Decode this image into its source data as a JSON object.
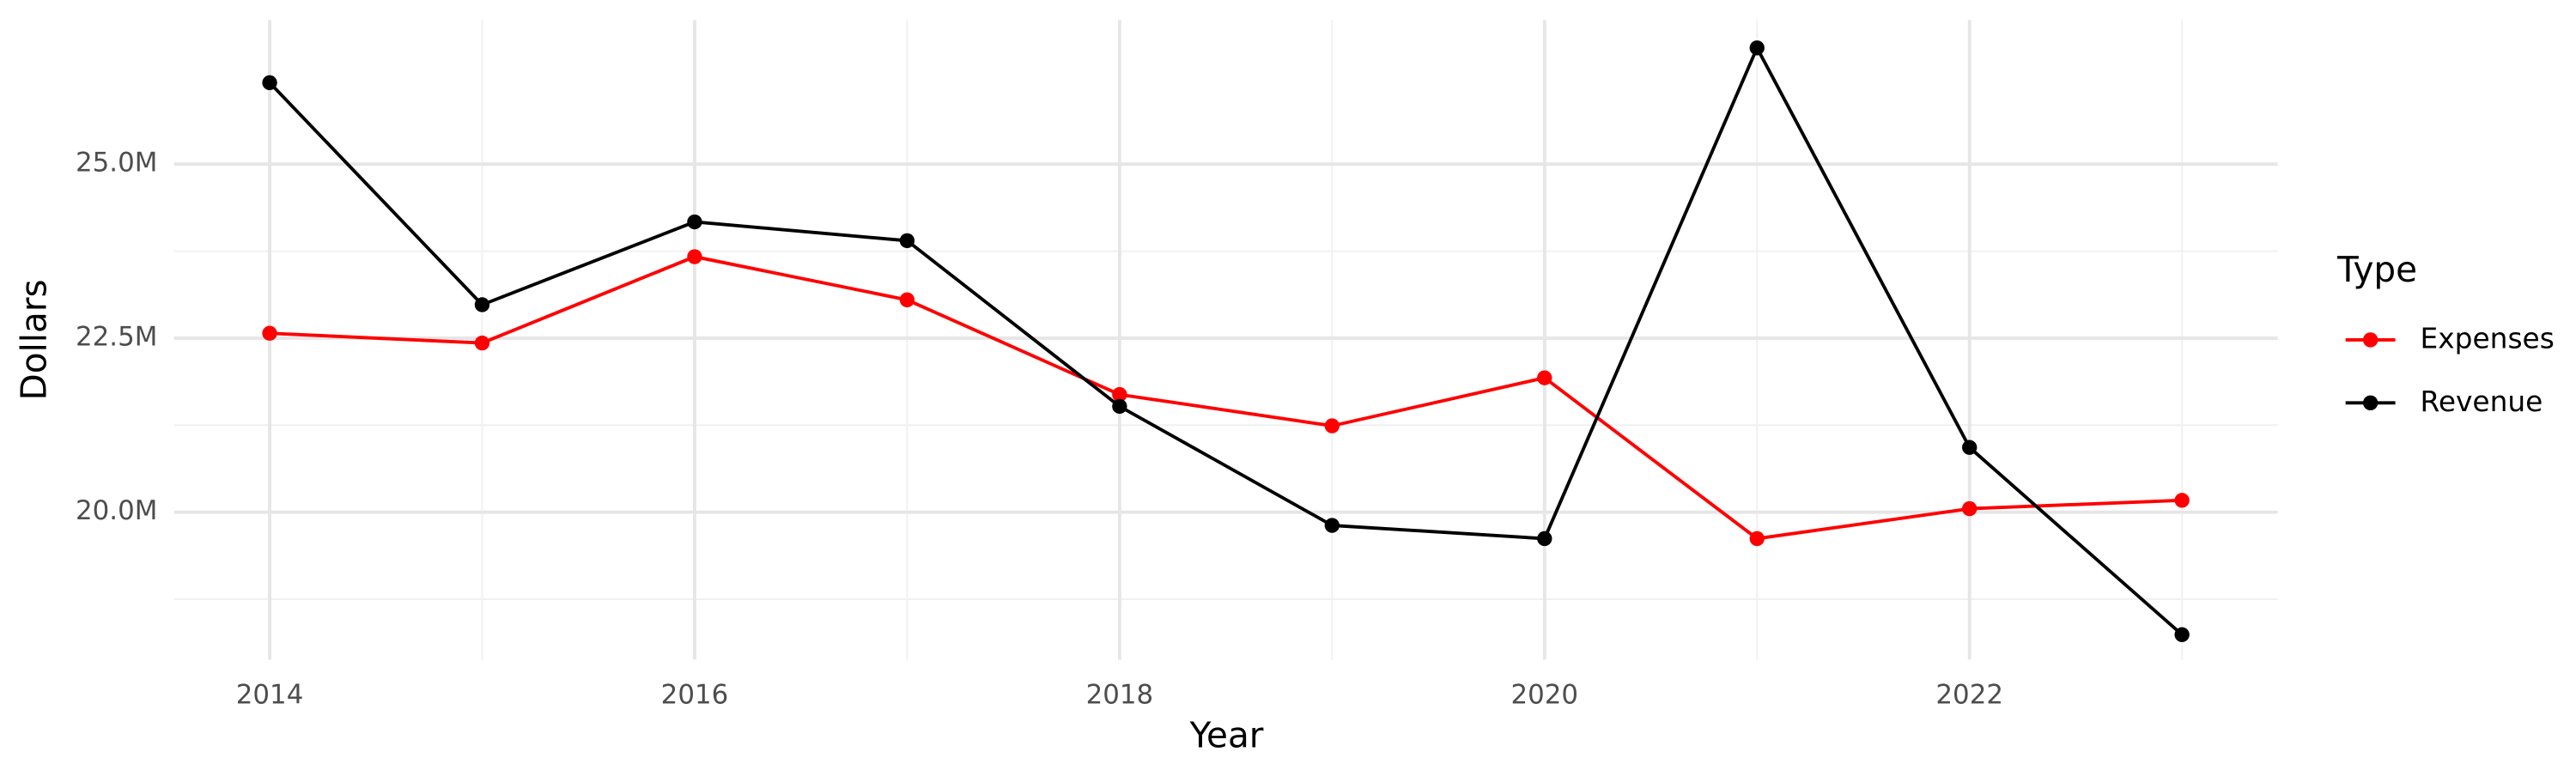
{
  "chart_data": {
    "type": "line",
    "x_label": "Year",
    "y_label": "Dollars",
    "legend_title": "Type",
    "legend_position": "right",
    "x": [
      2014,
      2015,
      2016,
      2017,
      2018,
      2019,
      2020,
      2021,
      2022,
      2023
    ],
    "series": [
      {
        "name": "Expenses",
        "color": "#ff0000",
        "values": [
          22570000,
          22430000,
          23670000,
          23050000,
          21690000,
          21240000,
          21930000,
          19620000,
          20050000,
          20170000
        ]
      },
      {
        "name": "Revenue",
        "color": "#000000",
        "values": [
          26170000,
          22980000,
          24170000,
          23900000,
          21520000,
          19810000,
          19620000,
          26670000,
          20930000,
          18240000
        ]
      }
    ],
    "xlim": [
      2013.55,
      2023.45
    ],
    "xticks": [
      2014,
      2016,
      2018,
      2020,
      2022
    ],
    "xminorticks": [
      2015,
      2017,
      2019,
      2021,
      2023
    ],
    "ylim": [
      17880000,
      27070000
    ],
    "yticks": [
      {
        "value": 20000000,
        "label": "20.0M"
      },
      {
        "value": 22500000,
        "label": "22.5M"
      },
      {
        "value": 25000000,
        "label": "25.0M"
      }
    ],
    "yminorticks": [
      18750000,
      21250000,
      23750000
    ],
    "grid": true
  }
}
